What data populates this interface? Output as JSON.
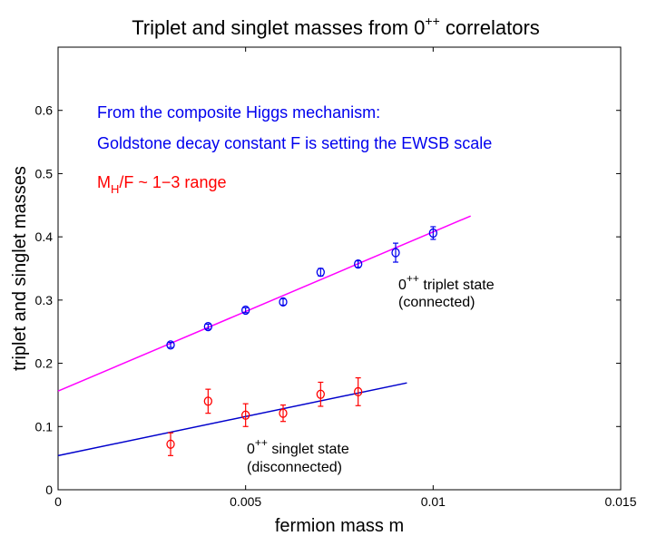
{
  "chart_data": {
    "type": "scatter",
    "title": {
      "main": "Triplet and singlet masses from 0",
      "sup": "++",
      "tail": " correlators"
    },
    "xlabel": "fermion mass m",
    "ylabel": "triplet and singlet masses",
    "xlim": [
      0,
      0.015
    ],
    "ylim": [
      0,
      0.7
    ],
    "xticks": [
      0,
      0.005,
      0.01,
      0.015
    ],
    "xtick_labels": [
      "0",
      "0.005",
      "0.01",
      "0.015"
    ],
    "yticks": [
      0,
      0.1,
      0.2,
      0.3,
      0.4,
      0.5,
      0.6
    ],
    "ytick_labels": [
      "0",
      "0.1",
      "0.2",
      "0.3",
      "0.4",
      "0.5",
      "0.6"
    ],
    "grid": false,
    "series": [
      {
        "name": "0++ triplet state (connected)",
        "color": "#0000ee",
        "marker": "circle",
        "x": [
          0.003,
          0.004,
          0.005,
          0.006,
          0.007,
          0.008,
          0.009,
          0.01
        ],
        "y": [
          0.229,
          0.258,
          0.284,
          0.297,
          0.344,
          0.357,
          0.375,
          0.406
        ],
        "yerr": [
          0.004,
          0.004,
          0.004,
          0.005,
          0.006,
          0.005,
          0.015,
          0.01
        ]
      },
      {
        "name": "0++ singlet state (disconnected)",
        "color": "#ff0000",
        "marker": "circle",
        "x": [
          0.003,
          0.004,
          0.005,
          0.006,
          0.007,
          0.008
        ],
        "y": [
          0.072,
          0.14,
          0.118,
          0.121,
          0.151,
          0.155
        ],
        "yerr": [
          0.018,
          0.019,
          0.018,
          0.013,
          0.019,
          0.022
        ]
      }
    ],
    "fits": [
      {
        "name": "triplet fit",
        "color": "#ff00ff",
        "x": [
          0,
          0.011
        ],
        "y": [
          0.156,
          0.433
        ]
      },
      {
        "name": "singlet fit",
        "color": "#0000cc",
        "x": [
          0,
          0.0093
        ],
        "y": [
          0.054,
          0.169
        ]
      }
    ],
    "annotations": {
      "line1": "From the composite Higgs mechanism:",
      "line2": "Goldstone decay constant F is setting the EWSB scale",
      "mh_M": "M",
      "mh_sub": "H",
      "mh_rest": "/F ~ 1−3 range",
      "triplet_base": "0",
      "triplet_sup": "++",
      "triplet_rest": " triplet state",
      "triplet_line2": "(connected)",
      "singlet_base": "0",
      "singlet_sup": "++",
      "singlet_rest": " singlet state",
      "singlet_line2": "(disconnected)"
    },
    "colors": {
      "blue_text": "#0000ee",
      "red_text": "#ff0000"
    }
  }
}
